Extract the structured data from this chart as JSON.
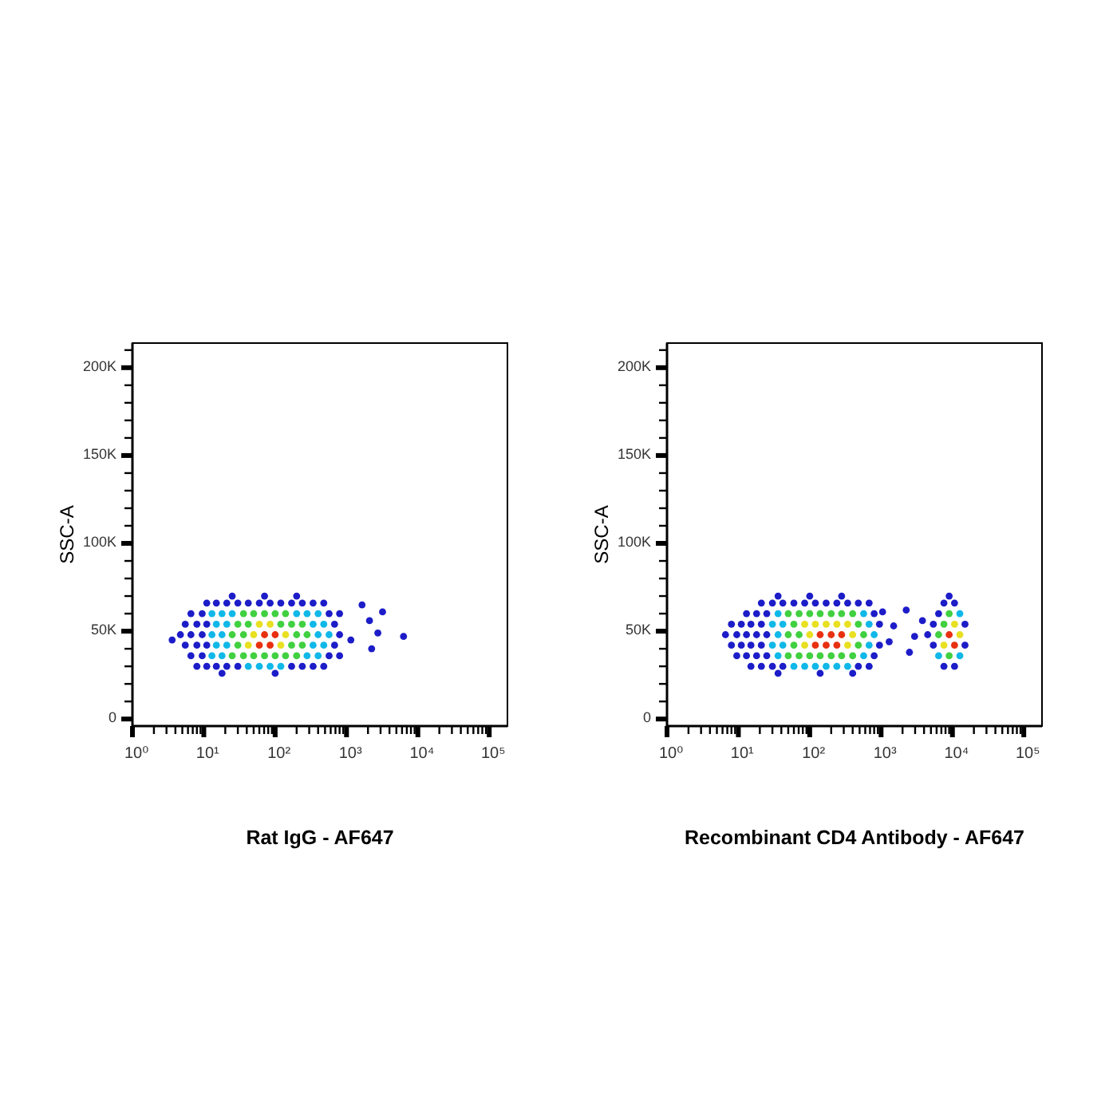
{
  "chart_data": [
    {
      "type": "scatter",
      "xlabel": "Rat IgG - AF647",
      "ylabel": "SSC-A",
      "log": "x",
      "marker": "circle",
      "xlim": [
        1,
        180000
      ],
      "ylim": [
        -4000,
        214000
      ],
      "xticks": [
        {
          "value": 1,
          "label": "10⁰"
        },
        {
          "value": 2,
          "label": null
        },
        {
          "value": 3,
          "label": null
        },
        {
          "value": 4,
          "label": null
        },
        {
          "value": 5,
          "label": null
        },
        {
          "value": 6,
          "label": null
        },
        {
          "value": 7,
          "label": null
        },
        {
          "value": 8,
          "label": null
        },
        {
          "value": 9,
          "label": null
        },
        {
          "value": 10,
          "label": "10¹"
        },
        {
          "value": 20,
          "label": null
        },
        {
          "value": 30,
          "label": null
        },
        {
          "value": 40,
          "label": null
        },
        {
          "value": 50,
          "label": null
        },
        {
          "value": 60,
          "label": null
        },
        {
          "value": 70,
          "label": null
        },
        {
          "value": 80,
          "label": null
        },
        {
          "value": 90,
          "label": null
        },
        {
          "value": 100,
          "label": "10²"
        },
        {
          "value": 200,
          "label": null
        },
        {
          "value": 300,
          "label": null
        },
        {
          "value": 400,
          "label": null
        },
        {
          "value": 500,
          "label": null
        },
        {
          "value": 600,
          "label": null
        },
        {
          "value": 700,
          "label": null
        },
        {
          "value": 800,
          "label": null
        },
        {
          "value": 900,
          "label": null
        },
        {
          "value": 1000,
          "label": "10³"
        },
        {
          "value": 2000,
          "label": null
        },
        {
          "value": 3000,
          "label": null
        },
        {
          "value": 4000,
          "label": null
        },
        {
          "value": 5000,
          "label": null
        },
        {
          "value": 6000,
          "label": null
        },
        {
          "value": 7000,
          "label": null
        },
        {
          "value": 8000,
          "label": null
        },
        {
          "value": 9000,
          "label": null
        },
        {
          "value": 10000,
          "label": "10⁴"
        },
        {
          "value": 20000,
          "label": null
        },
        {
          "value": 30000,
          "label": null
        },
        {
          "value": 40000,
          "label": null
        },
        {
          "value": 50000,
          "label": null
        },
        {
          "value": 60000,
          "label": null
        },
        {
          "value": 70000,
          "label": null
        },
        {
          "value": 80000,
          "label": null
        },
        {
          "value": 90000,
          "label": null
        },
        {
          "value": 100000,
          "label": "10⁵"
        }
      ],
      "yticks": [
        0,
        {
          "value": 10000,
          "label": null
        },
        {
          "value": 20000,
          "label": null
        },
        {
          "value": 30000,
          "label": null
        },
        {
          "value": 40000,
          "label": null
        },
        {
          "value": 50000,
          "label": "50K"
        },
        {
          "value": 60000,
          "label": null
        },
        {
          "value": 70000,
          "label": null
        },
        {
          "value": 80000,
          "label": null
        },
        {
          "value": 90000,
          "label": null
        },
        {
          "value": 100000,
          "label": "100K"
        },
        {
          "value": 110000,
          "label": null
        },
        {
          "value": 120000,
          "label": null
        },
        {
          "value": 130000,
          "label": null
        },
        {
          "value": 140000,
          "label": null
        },
        {
          "value": 150000,
          "label": "150K"
        },
        {
          "value": 160000,
          "label": null
        },
        {
          "value": 170000,
          "label": null
        },
        {
          "value": 180000,
          "label": null
        },
        {
          "value": 190000,
          "label": null
        },
        {
          "value": 200000,
          "label": "200K"
        },
        {
          "value": 210000,
          "label": null
        }
      ],
      "series": [
        {
          "color": "#1c1cc8",
          "x": [
            25,
            71,
            200,
            11,
            15,
            21,
            30,
            42,
            60,
            85,
            120,
            170,
            240,
            340,
            480,
            6.6,
            9.5,
            570,
            800,
            5.5,
            8,
            11,
            680,
            4.7,
            6.6,
            9.5,
            800,
            3.6,
            5.5,
            8,
            11,
            680,
            6.6,
            9.5,
            570,
            800,
            8,
            11,
            15,
            21,
            30,
            170,
            240,
            340,
            480,
            18,
            100,
            1650,
            2100,
            3200,
            6300,
            2750,
            2250,
            1150
          ],
          "values": [
            70000,
            70000,
            70000,
            66000,
            66000,
            66000,
            66000,
            66000,
            66000,
            66000,
            66000,
            66000,
            66000,
            66000,
            66000,
            60000,
            60000,
            60000,
            60000,
            54000,
            54000,
            54000,
            54000,
            48000,
            48000,
            48000,
            48000,
            45000,
            42000,
            42000,
            42000,
            42000,
            36000,
            36000,
            36000,
            36000,
            30000,
            30000,
            30000,
            30000,
            30000,
            30000,
            30000,
            30000,
            30000,
            26000,
            26000,
            65000,
            56000,
            61000,
            47000,
            49000,
            40000,
            45000
          ]
        },
        {
          "color": "#10b8e8",
          "x": [
            13,
            18,
            25,
            200,
            280,
            400,
            15,
            21,
            340,
            480,
            13,
            18,
            400,
            570,
            15,
            21,
            340,
            480,
            13,
            18,
            280,
            400,
            42,
            60,
            85,
            120
          ],
          "values": [
            60000,
            60000,
            60000,
            60000,
            60000,
            60000,
            54000,
            54000,
            54000,
            54000,
            48000,
            48000,
            48000,
            48000,
            42000,
            42000,
            42000,
            42000,
            36000,
            36000,
            36000,
            36000,
            30000,
            30000,
            30000,
            30000
          ]
        },
        {
          "color": "#40d040",
          "x": [
            36,
            50,
            71,
            100,
            140,
            30,
            42,
            120,
            170,
            240,
            25,
            36,
            200,
            280,
            30,
            170,
            240,
            25,
            36,
            50,
            71,
            100,
            140,
            200
          ],
          "values": [
            60000,
            60000,
            60000,
            60000,
            60000,
            54000,
            54000,
            54000,
            54000,
            54000,
            48000,
            48000,
            48000,
            48000,
            42000,
            42000,
            42000,
            36000,
            36000,
            36000,
            36000,
            36000,
            36000,
            36000
          ]
        },
        {
          "color": "#e8e020",
          "x": [
            60,
            85,
            50,
            140,
            42,
            120
          ],
          "values": [
            54000,
            54000,
            48000,
            48000,
            42000,
            42000
          ]
        },
        {
          "color": "#e83010",
          "x": [
            71,
            100,
            60,
            85
          ],
          "values": [
            48000,
            48000,
            42000,
            42000
          ]
        }
      ]
    },
    {
      "type": "scatter",
      "xlabel": "Recombinant CD4 Antibody - AF647",
      "ylabel": "SSC-A",
      "log": "x",
      "marker": "circle",
      "xlim": [
        1,
        180000
      ],
      "ylim": [
        -4000,
        214000
      ],
      "xticks": [
        {
          "value": 1,
          "label": "10⁰"
        },
        {
          "value": 2,
          "label": null
        },
        {
          "value": 3,
          "label": null
        },
        {
          "value": 4,
          "label": null
        },
        {
          "value": 5,
          "label": null
        },
        {
          "value": 6,
          "label": null
        },
        {
          "value": 7,
          "label": null
        },
        {
          "value": 8,
          "label": null
        },
        {
          "value": 9,
          "label": null
        },
        {
          "value": 10,
          "label": "10¹"
        },
        {
          "value": 20,
          "label": null
        },
        {
          "value": 30,
          "label": null
        },
        {
          "value": 40,
          "label": null
        },
        {
          "value": 50,
          "label": null
        },
        {
          "value": 60,
          "label": null
        },
        {
          "value": 70,
          "label": null
        },
        {
          "value": 80,
          "label": null
        },
        {
          "value": 90,
          "label": null
        },
        {
          "value": 100,
          "label": "10²"
        },
        {
          "value": 200,
          "label": null
        },
        {
          "value": 300,
          "label": null
        },
        {
          "value": 400,
          "label": null
        },
        {
          "value": 500,
          "label": null
        },
        {
          "value": 600,
          "label": null
        },
        {
          "value": 700,
          "label": null
        },
        {
          "value": 800,
          "label": null
        },
        {
          "value": 900,
          "label": null
        },
        {
          "value": 1000,
          "label": "10³"
        },
        {
          "value": 2000,
          "label": null
        },
        {
          "value": 3000,
          "label": null
        },
        {
          "value": 4000,
          "label": null
        },
        {
          "value": 5000,
          "label": null
        },
        {
          "value": 6000,
          "label": null
        },
        {
          "value": 7000,
          "label": null
        },
        {
          "value": 8000,
          "label": null
        },
        {
          "value": 9000,
          "label": null
        },
        {
          "value": 10000,
          "label": "10⁴"
        },
        {
          "value": 20000,
          "label": null
        },
        {
          "value": 30000,
          "label": null
        },
        {
          "value": 40000,
          "label": null
        },
        {
          "value": 50000,
          "label": null
        },
        {
          "value": 60000,
          "label": null
        },
        {
          "value": 70000,
          "label": null
        },
        {
          "value": 80000,
          "label": null
        },
        {
          "value": 90000,
          "label": null
        },
        {
          "value": 100000,
          "label": "10⁵"
        }
      ],
      "yticks": [
        0,
        {
          "value": 10000,
          "label": null
        },
        {
          "value": 20000,
          "label": null
        },
        {
          "value": 30000,
          "label": null
        },
        {
          "value": 40000,
          "label": null
        },
        {
          "value": 50000,
          "label": "50K"
        },
        {
          "value": 60000,
          "label": null
        },
        {
          "value": 70000,
          "label": null
        },
        {
          "value": 80000,
          "label": null
        },
        {
          "value": 90000,
          "label": null
        },
        {
          "value": 100000,
          "label": "100K"
        },
        {
          "value": 110000,
          "label": null
        },
        {
          "value": 120000,
          "label": null
        },
        {
          "value": 130000,
          "label": null
        },
        {
          "value": 140000,
          "label": null
        },
        {
          "value": 150000,
          "label": "150K"
        },
        {
          "value": 160000,
          "label": null
        },
        {
          "value": 170000,
          "label": null
        },
        {
          "value": 180000,
          "label": null
        },
        {
          "value": 190000,
          "label": null
        },
        {
          "value": 200000,
          "label": "200K"
        },
        {
          "value": 210000,
          "label": null
        }
      ],
      "series": [
        {
          "color": "#1c1cc8",
          "x": [
            36,
            100,
            280,
            9000,
            21,
            30,
            42,
            60,
            85,
            120,
            170,
            240,
            340,
            480,
            680,
            7600,
            10700,
            13,
            18,
            25,
            800,
            6400,
            8,
            11,
            15,
            21,
            950,
            5400,
            15000,
            6.6,
            9.5,
            13,
            18,
            25,
            4500,
            8,
            11,
            15,
            21,
            950,
            5400,
            15000,
            9.5,
            13,
            18,
            25,
            800,
            15,
            21,
            30,
            42,
            480,
            680,
            7600,
            10700,
            36,
            140,
            400,
            1050,
            1500,
            2250,
            2950,
            3800,
            1300,
            2500
          ],
          "values": [
            70000,
            70000,
            70000,
            70000,
            66000,
            66000,
            66000,
            66000,
            66000,
            66000,
            66000,
            66000,
            66000,
            66000,
            66000,
            66000,
            66000,
            60000,
            60000,
            60000,
            60000,
            60000,
            54000,
            54000,
            54000,
            54000,
            54000,
            54000,
            54000,
            48000,
            48000,
            48000,
            48000,
            48000,
            48000,
            42000,
            42000,
            42000,
            42000,
            42000,
            42000,
            42000,
            36000,
            36000,
            36000,
            36000,
            36000,
            30000,
            30000,
            30000,
            30000,
            30000,
            30000,
            30000,
            30000,
            26000,
            26000,
            26000,
            61000,
            53000,
            62000,
            47000,
            56000,
            44000,
            38000
          ]
        },
        {
          "color": "#10b8e8",
          "x": [
            36,
            570,
            12700,
            30,
            42,
            680,
            36,
            800,
            30,
            42,
            680,
            36,
            570,
            6400,
            12700,
            60,
            85,
            120,
            170,
            240,
            340
          ],
          "values": [
            60000,
            60000,
            60000,
            54000,
            54000,
            54000,
            48000,
            48000,
            42000,
            42000,
            42000,
            36000,
            36000,
            36000,
            36000,
            30000,
            30000,
            30000,
            30000,
            30000,
            30000
          ]
        },
        {
          "color": "#40d040",
          "x": [
            50,
            71,
            100,
            140,
            200,
            280,
            400,
            9000,
            60,
            480,
            7600,
            50,
            71,
            570,
            6400,
            60,
            480,
            50,
            71,
            100,
            140,
            200,
            280,
            400,
            9000
          ],
          "values": [
            60000,
            60000,
            60000,
            60000,
            60000,
            60000,
            60000,
            60000,
            54000,
            54000,
            54000,
            48000,
            48000,
            48000,
            48000,
            42000,
            42000,
            36000,
            36000,
            36000,
            36000,
            36000,
            36000,
            36000,
            36000
          ]
        },
        {
          "color": "#e8e020",
          "x": [
            85,
            120,
            170,
            240,
            340,
            10700,
            100,
            400,
            12700,
            85,
            340,
            7600
          ],
          "values": [
            54000,
            54000,
            54000,
            54000,
            54000,
            54000,
            48000,
            48000,
            48000,
            42000,
            42000,
            42000
          ]
        },
        {
          "color": "#e83010",
          "x": [
            140,
            200,
            280,
            9000,
            120,
            170,
            240,
            10700
          ],
          "values": [
            48000,
            48000,
            48000,
            48000,
            42000,
            42000,
            42000,
            42000
          ]
        }
      ]
    }
  ]
}
